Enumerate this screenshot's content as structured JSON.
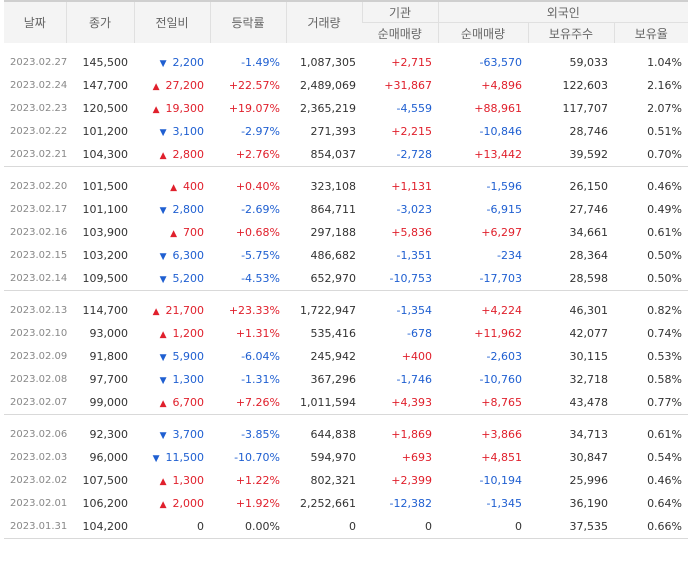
{
  "headers": {
    "date": "날짜",
    "close": "종가",
    "change": "전일비",
    "rate": "등락률",
    "volume": "거래량",
    "institution": "기관",
    "institution_net": "순매매량",
    "foreign": "외국인",
    "foreign_net": "순매매량",
    "foreign_holdings": "보유주수",
    "foreign_ratio": "보유율"
  },
  "groups": [
    [
      {
        "date": "2023.02.27",
        "close": "145,500",
        "dir": "down",
        "change": "2,200",
        "rate": "-1.49%",
        "volume": "1,087,305",
        "inst": "+2,715",
        "foreign": "-63,570",
        "hold": "59,033",
        "ratio": "1.04%"
      },
      {
        "date": "2023.02.24",
        "close": "147,700",
        "dir": "up",
        "change": "27,200",
        "rate": "+22.57%",
        "volume": "2,489,069",
        "inst": "+31,867",
        "foreign": "+4,896",
        "hold": "122,603",
        "ratio": "2.16%"
      },
      {
        "date": "2023.02.23",
        "close": "120,500",
        "dir": "up",
        "change": "19,300",
        "rate": "+19.07%",
        "volume": "2,365,219",
        "inst": "-4,559",
        "foreign": "+88,961",
        "hold": "117,707",
        "ratio": "2.07%"
      },
      {
        "date": "2023.02.22",
        "close": "101,200",
        "dir": "down",
        "change": "3,100",
        "rate": "-2.97%",
        "volume": "271,393",
        "inst": "+2,215",
        "foreign": "-10,846",
        "hold": "28,746",
        "ratio": "0.51%"
      },
      {
        "date": "2023.02.21",
        "close": "104,300",
        "dir": "up",
        "change": "2,800",
        "rate": "+2.76%",
        "volume": "854,037",
        "inst": "-2,728",
        "foreign": "+13,442",
        "hold": "39,592",
        "ratio": "0.70%"
      }
    ],
    [
      {
        "date": "2023.02.20",
        "close": "101,500",
        "dir": "up",
        "change": "400",
        "rate": "+0.40%",
        "volume": "323,108",
        "inst": "+1,131",
        "foreign": "-1,596",
        "hold": "26,150",
        "ratio": "0.46%"
      },
      {
        "date": "2023.02.17",
        "close": "101,100",
        "dir": "down",
        "change": "2,800",
        "rate": "-2.69%",
        "volume": "864,711",
        "inst": "-3,023",
        "foreign": "-6,915",
        "hold": "27,746",
        "ratio": "0.49%"
      },
      {
        "date": "2023.02.16",
        "close": "103,900",
        "dir": "up",
        "change": "700",
        "rate": "+0.68%",
        "volume": "297,188",
        "inst": "+5,836",
        "foreign": "+6,297",
        "hold": "34,661",
        "ratio": "0.61%"
      },
      {
        "date": "2023.02.15",
        "close": "103,200",
        "dir": "down",
        "change": "6,300",
        "rate": "-5.75%",
        "volume": "486,682",
        "inst": "-1,351",
        "foreign": "-234",
        "hold": "28,364",
        "ratio": "0.50%"
      },
      {
        "date": "2023.02.14",
        "close": "109,500",
        "dir": "down",
        "change": "5,200",
        "rate": "-4.53%",
        "volume": "652,970",
        "inst": "-10,753",
        "foreign": "-17,703",
        "hold": "28,598",
        "ratio": "0.50%"
      }
    ],
    [
      {
        "date": "2023.02.13",
        "close": "114,700",
        "dir": "up",
        "change": "21,700",
        "rate": "+23.33%",
        "volume": "1,722,947",
        "inst": "-1,354",
        "foreign": "+4,224",
        "hold": "46,301",
        "ratio": "0.82%"
      },
      {
        "date": "2023.02.10",
        "close": "93,000",
        "dir": "up",
        "change": "1,200",
        "rate": "+1.31%",
        "volume": "535,416",
        "inst": "-678",
        "foreign": "+11,962",
        "hold": "42,077",
        "ratio": "0.74%"
      },
      {
        "date": "2023.02.09",
        "close": "91,800",
        "dir": "down",
        "change": "5,900",
        "rate": "-6.04%",
        "volume": "245,942",
        "inst": "+400",
        "foreign": "-2,603",
        "hold": "30,115",
        "ratio": "0.53%"
      },
      {
        "date": "2023.02.08",
        "close": "97,700",
        "dir": "down",
        "change": "1,300",
        "rate": "-1.31%",
        "volume": "367,296",
        "inst": "-1,746",
        "foreign": "-10,760",
        "hold": "32,718",
        "ratio": "0.58%"
      },
      {
        "date": "2023.02.07",
        "close": "99,000",
        "dir": "up",
        "change": "6,700",
        "rate": "+7.26%",
        "volume": "1,011,594",
        "inst": "+4,393",
        "foreign": "+8,765",
        "hold": "43,478",
        "ratio": "0.77%"
      }
    ],
    [
      {
        "date": "2023.02.06",
        "close": "92,300",
        "dir": "down",
        "change": "3,700",
        "rate": "-3.85%",
        "volume": "644,838",
        "inst": "+1,869",
        "foreign": "+3,866",
        "hold": "34,713",
        "ratio": "0.61%"
      },
      {
        "date": "2023.02.03",
        "close": "96,000",
        "dir": "down",
        "change": "11,500",
        "rate": "-10.70%",
        "volume": "594,970",
        "inst": "+693",
        "foreign": "+4,851",
        "hold": "30,847",
        "ratio": "0.54%"
      },
      {
        "date": "2023.02.02",
        "close": "107,500",
        "dir": "up",
        "change": "1,300",
        "rate": "+1.22%",
        "volume": "802,321",
        "inst": "+2,399",
        "foreign": "-10,194",
        "hold": "25,996",
        "ratio": "0.46%"
      },
      {
        "date": "2023.02.01",
        "close": "106,200",
        "dir": "up",
        "change": "2,000",
        "rate": "+1.92%",
        "volume": "2,252,661",
        "inst": "-12,382",
        "foreign": "-1,345",
        "hold": "36,190",
        "ratio": "0.64%"
      },
      {
        "date": "2023.01.31",
        "close": "104,200",
        "dir": "none",
        "change": "0",
        "rate": "0.00%",
        "volume": "0",
        "inst": "0",
        "foreign": "0",
        "hold": "37,535",
        "ratio": "0.66%"
      }
    ]
  ],
  "icons": {
    "up": "triangle-up-icon",
    "down": "triangle-down-icon"
  },
  "colors": {
    "up": "#e0202c",
    "down": "#1f5fd1"
  }
}
